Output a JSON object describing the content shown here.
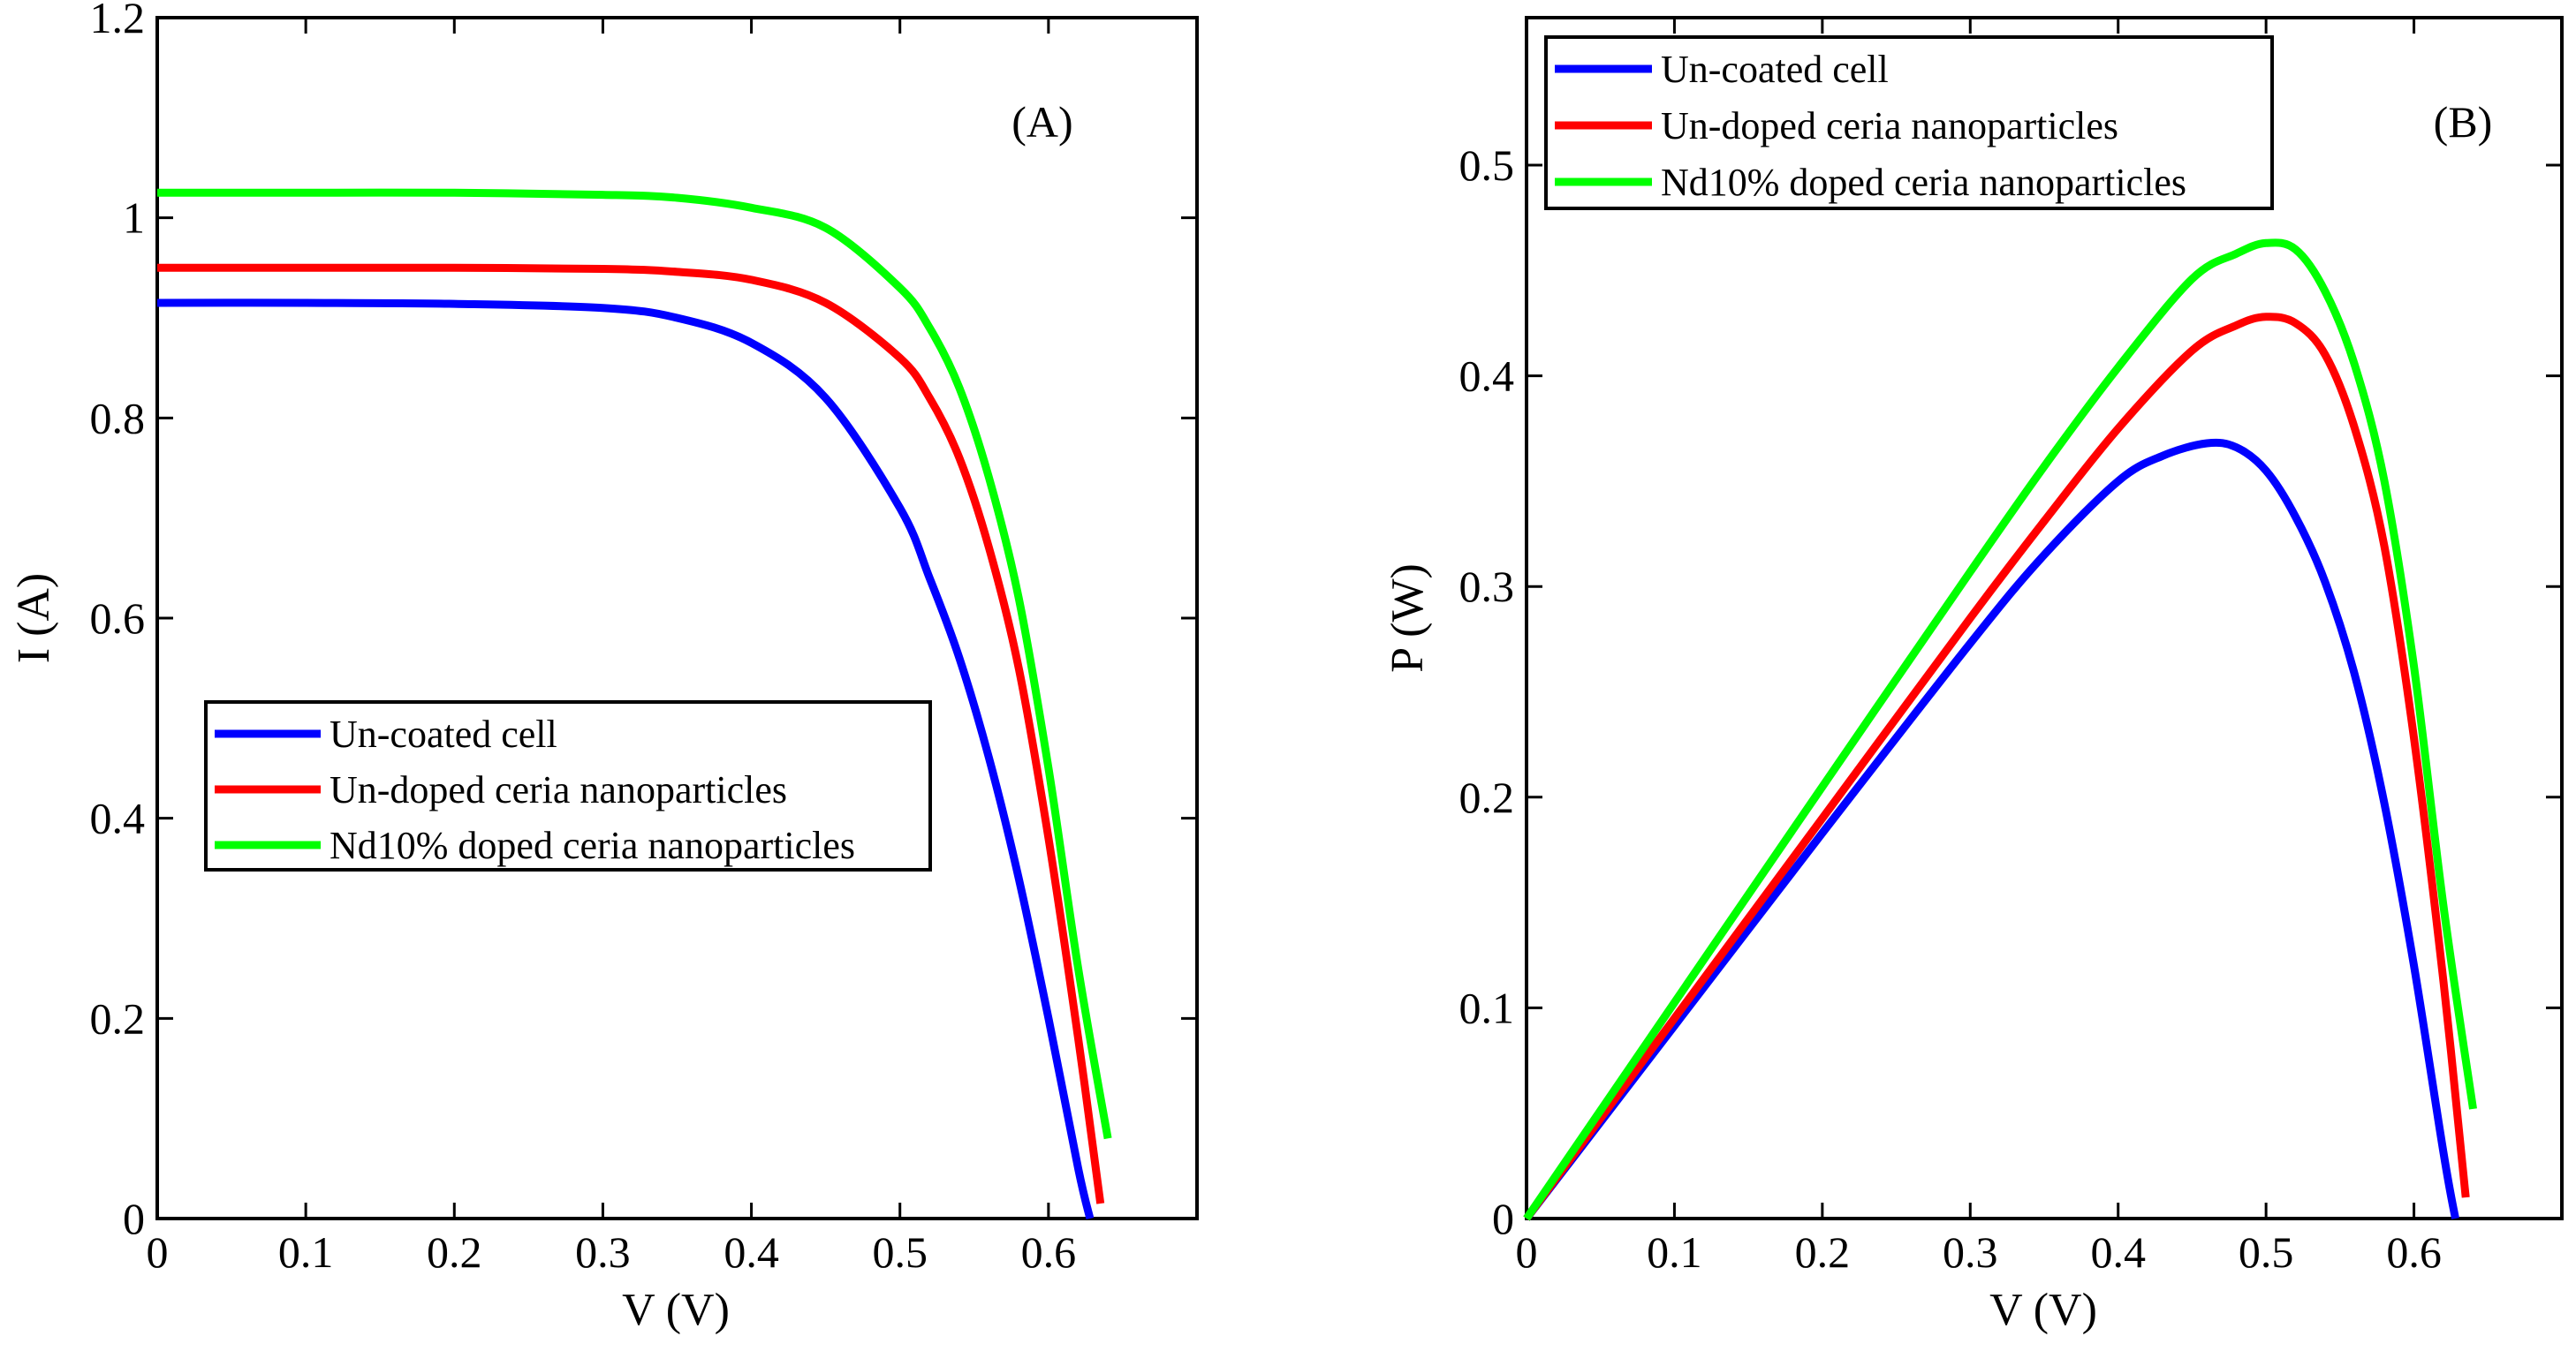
{
  "chart_data": [
    {
      "type": "line",
      "panel_label": "(A)",
      "xlabel": "V (V)",
      "ylabel": "I (A)",
      "xlim": [
        0,
        0.7
      ],
      "ylim": [
        0,
        1.2
      ],
      "xticks": [
        "0",
        "0.1",
        "0.2",
        "0.3",
        "0.4",
        "0.5",
        "0.6"
      ],
      "yticks": [
        "0",
        "0.2",
        "0.4",
        "0.6",
        "0.8",
        "1",
        "1.2"
      ],
      "legend_position": "center-left",
      "series": [
        {
          "name": "Un-coated cell",
          "color": "#0000ff",
          "x": [
            0,
            0.1,
            0.2,
            0.3,
            0.35,
            0.4,
            0.45,
            0.5,
            0.52,
            0.54,
            0.56,
            0.58,
            0.6,
            0.62,
            0.628
          ],
          "y": [
            0.915,
            0.915,
            0.914,
            0.91,
            0.9,
            0.875,
            0.82,
            0.71,
            0.64,
            0.56,
            0.46,
            0.34,
            0.2,
            0.05,
            0.0
          ]
        },
        {
          "name": "Un-doped ceria nanoparticles",
          "color": "#ff0000",
          "x": [
            0,
            0.1,
            0.2,
            0.3,
            0.35,
            0.4,
            0.45,
            0.5,
            0.52,
            0.54,
            0.56,
            0.58,
            0.6,
            0.62,
            0.635
          ],
          "y": [
            0.95,
            0.95,
            0.95,
            0.949,
            0.946,
            0.938,
            0.915,
            0.86,
            0.82,
            0.76,
            0.67,
            0.55,
            0.38,
            0.18,
            0.015
          ]
        },
        {
          "name": "Nd10% doped ceria nanoparticles",
          "color": "#00ff00",
          "x": [
            0,
            0.1,
            0.2,
            0.3,
            0.35,
            0.4,
            0.45,
            0.5,
            0.52,
            0.54,
            0.56,
            0.58,
            0.6,
            0.62,
            0.64
          ],
          "y": [
            1.025,
            1.025,
            1.025,
            1.023,
            1.02,
            1.01,
            0.99,
            0.93,
            0.89,
            0.83,
            0.74,
            0.62,
            0.45,
            0.25,
            0.08
          ]
        }
      ]
    },
    {
      "type": "line",
      "panel_label": "(B)",
      "xlabel": "V (V)",
      "ylabel": "P (W)",
      "xlim": [
        0,
        0.7
      ],
      "ylim": [
        0,
        0.57
      ],
      "xticks": [
        "0",
        "0.1",
        "0.2",
        "0.3",
        "0.4",
        "0.5",
        "0.6"
      ],
      "yticks": [
        "0",
        "0.1",
        "0.2",
        "0.3",
        "0.4",
        "0.5"
      ],
      "legend_position": "top-left",
      "series": [
        {
          "name": "Un-coated cell",
          "color": "#0000ff",
          "x": [
            0,
            0.1,
            0.2,
            0.3,
            0.35,
            0.4,
            0.43,
            0.46,
            0.48,
            0.5,
            0.52,
            0.54,
            0.56,
            0.58,
            0.6,
            0.62,
            0.628
          ],
          "y": [
            0,
            0.0915,
            0.183,
            0.273,
            0.315,
            0.35,
            0.362,
            0.368,
            0.366,
            0.355,
            0.333,
            0.302,
            0.258,
            0.197,
            0.12,
            0.031,
            0.0
          ]
        },
        {
          "name": "Un-doped ceria nanoparticles",
          "color": "#ff0000",
          "x": [
            0,
            0.1,
            0.2,
            0.3,
            0.35,
            0.4,
            0.45,
            0.48,
            0.5,
            0.52,
            0.54,
            0.56,
            0.58,
            0.6,
            0.62,
            0.635
          ],
          "y": [
            0,
            0.095,
            0.19,
            0.285,
            0.331,
            0.375,
            0.412,
            0.424,
            0.428,
            0.425,
            0.41,
            0.375,
            0.319,
            0.228,
            0.112,
            0.01
          ]
        },
        {
          "name": "Nd10% doped ceria nanoparticles",
          "color": "#00ff00",
          "x": [
            0,
            0.1,
            0.2,
            0.3,
            0.35,
            0.4,
            0.45,
            0.48,
            0.5,
            0.52,
            0.54,
            0.56,
            0.58,
            0.6,
            0.62,
            0.64
          ],
          "y": [
            0,
            0.1025,
            0.205,
            0.307,
            0.357,
            0.404,
            0.446,
            0.458,
            0.463,
            0.46,
            0.44,
            0.405,
            0.35,
            0.262,
            0.148,
            0.052
          ]
        }
      ]
    }
  ]
}
